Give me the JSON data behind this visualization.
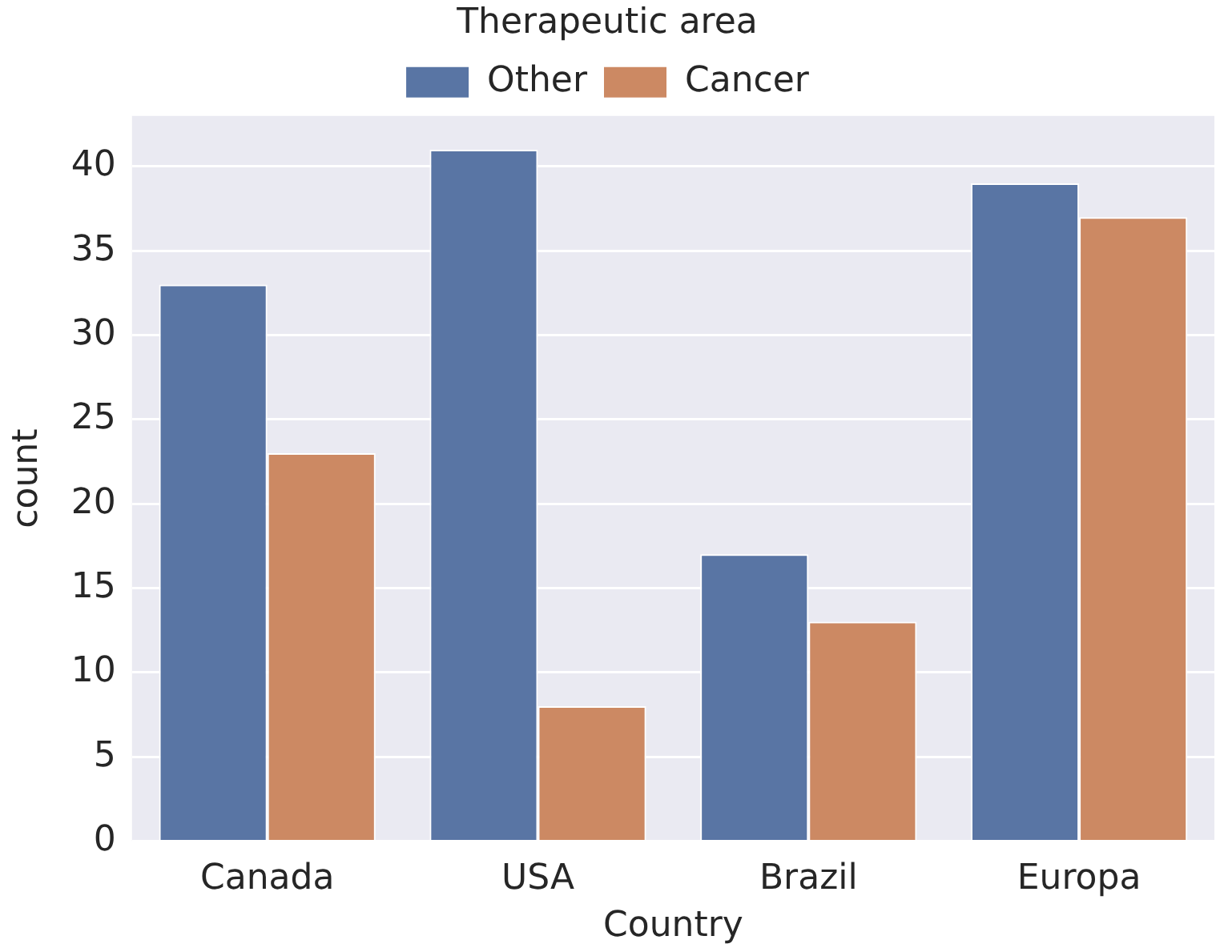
{
  "chart_data": {
    "type": "bar",
    "xlabel": "Country",
    "ylabel": "count",
    "legend_title": "Therapeutic area",
    "categories": [
      "Canada",
      "USA",
      "Brazil",
      "Europa"
    ],
    "series": [
      {
        "name": "Other",
        "color": "#5975a4",
        "values": [
          33,
          41,
          17,
          39
        ]
      },
      {
        "name": "Cancer",
        "color": "#cc8963",
        "values": [
          23,
          8,
          13,
          37
        ]
      }
    ],
    "ylim": [
      0,
      43
    ],
    "yticks": [
      0,
      5,
      10,
      15,
      20,
      25,
      30,
      35,
      40
    ],
    "grid": "y",
    "legend": "top"
  }
}
